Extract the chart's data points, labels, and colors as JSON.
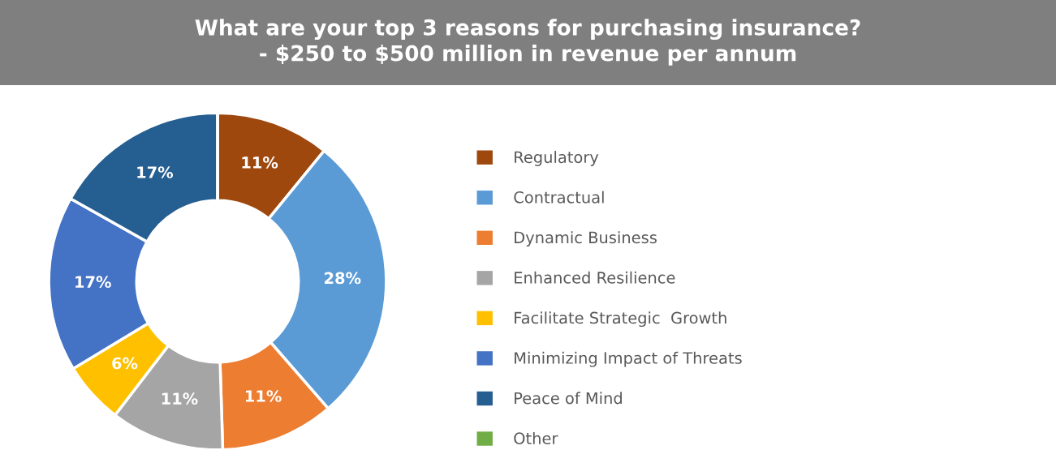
{
  "chart_data": {
    "type": "donut",
    "title": "What are your top 3 reasons for purchasing insurance?\n- $250 to $500 million in revenue per annum",
    "categories": [
      "Regulatory",
      "Contractual",
      "Dynamic Business",
      "Enhanced Resilience",
      "Facilitate Strategic  Growth",
      "Minimizing Impact of Threats",
      "Peace of Mind",
      "Other"
    ],
    "values": [
      11,
      28,
      11,
      11,
      6,
      17,
      17,
      0
    ],
    "value_labels": [
      "11%",
      "28%",
      "11%",
      "11%",
      "6%",
      "17%",
      "17%",
      null
    ],
    "colors": [
      "#9e480e",
      "#5b9bd5",
      "#ed7d31",
      "#a5a5a5",
      "#ffc000",
      "#4472c4",
      "#255e91",
      "#70ad47"
    ],
    "legend": "right"
  }
}
